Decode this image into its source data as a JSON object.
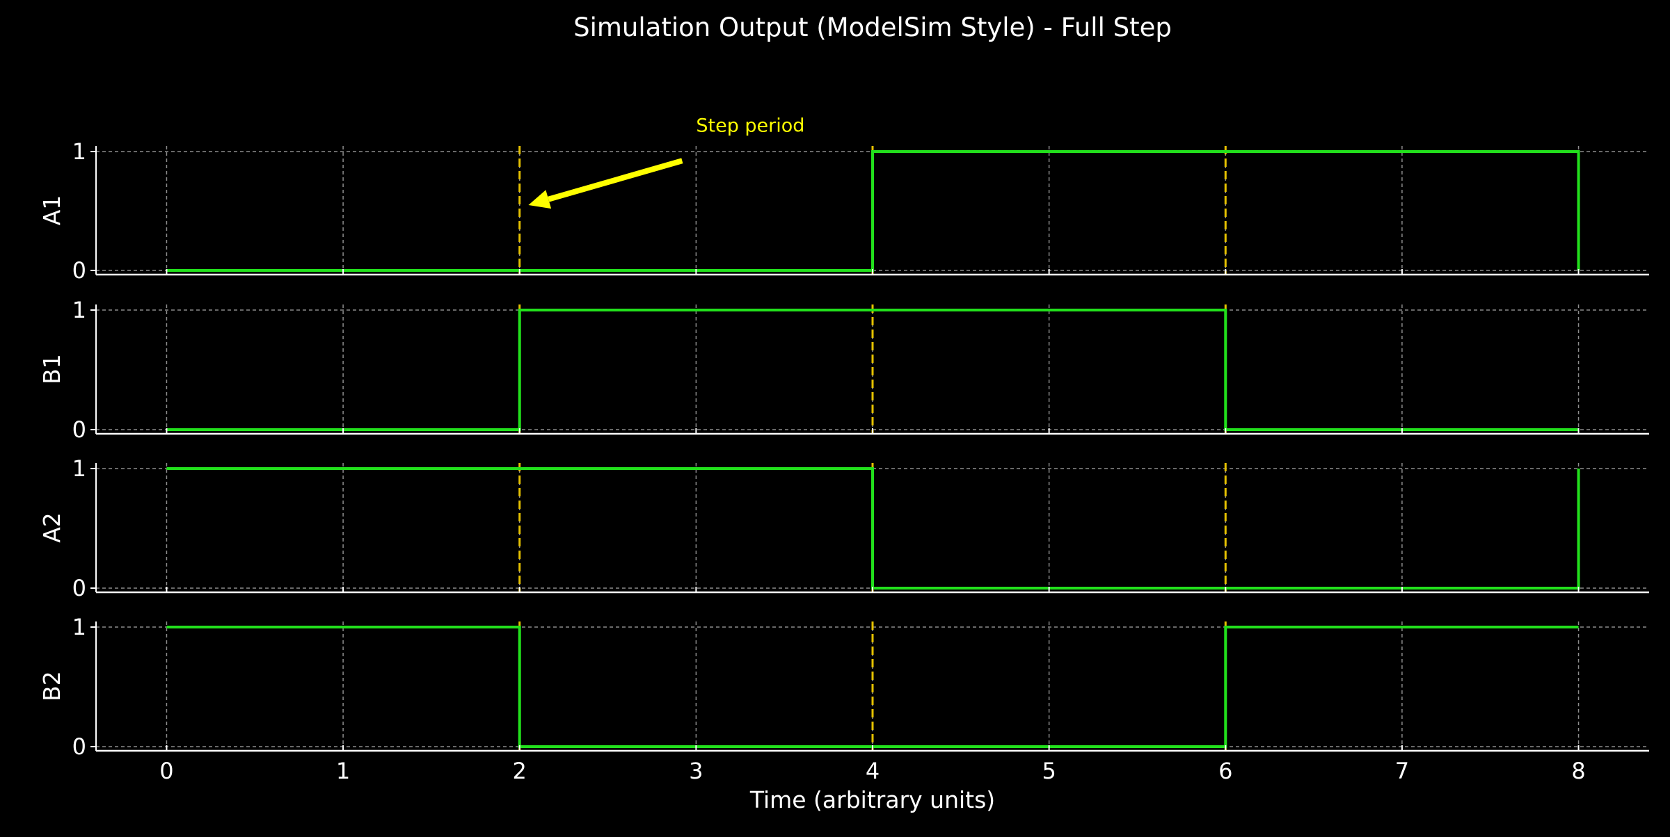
{
  "chart_data": {
    "type": "line",
    "title": "Simulation Output (ModelSim Style) - Full Step",
    "xlabel": "Time (arbitrary units)",
    "x_ticks": [
      0,
      1,
      2,
      3,
      4,
      5,
      6,
      7,
      8
    ],
    "xlim": [
      -0.4,
      8.4
    ],
    "ylim": [
      0,
      1
    ],
    "y_ticks": [
      0,
      1
    ],
    "grid": true,
    "step_markers": [
      2,
      4,
      6
    ],
    "annotation": {
      "text": "Step period",
      "point_to": {
        "x": 2.05,
        "y": 0.55
      },
      "text_at": {
        "x": 3.0,
        "y": 1.25
      }
    },
    "series": [
      {
        "name": "A1",
        "x": [
          0,
          4,
          8,
          8
        ],
        "values": [
          0,
          1,
          1,
          0
        ]
      },
      {
        "name": "B1",
        "x": [
          0,
          2,
          6,
          8
        ],
        "values": [
          0,
          1,
          0,
          0
        ]
      },
      {
        "name": "A2",
        "x": [
          0,
          4,
          8,
          8
        ],
        "values": [
          1,
          0,
          0,
          1
        ]
      },
      {
        "name": "B2",
        "x": [
          0,
          2,
          6,
          8
        ],
        "values": [
          1,
          0,
          1,
          1
        ]
      }
    ],
    "colors": {
      "background": "#000000",
      "signal": "#22e01c",
      "marker": "#e5c100",
      "grid": "#8c8c8c",
      "axis": "#ffffff",
      "text": "#ffffff",
      "annotation": "#ffff00"
    }
  }
}
